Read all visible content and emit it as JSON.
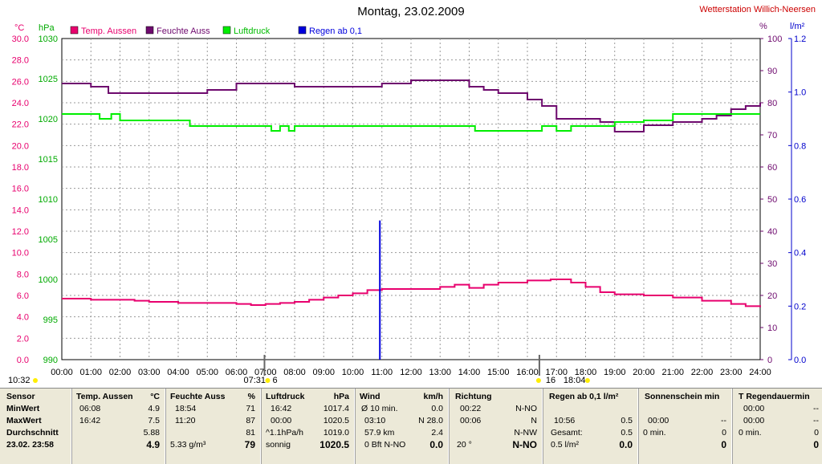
{
  "title": "Montag, 23.02.2009",
  "station": "Wetterstation Willich-Neersen",
  "colors": {
    "temp": "#e8006e",
    "humidity": "#6e0a6e",
    "pressure": "#00ee00",
    "rain": "#0000dd",
    "axis_temp": "#e8006e",
    "axis_hpa": "#00aa00",
    "axis_pct": "#6e0a6e",
    "axis_rain": "#0000cc"
  },
  "axis_units": {
    "temp": "°C",
    "pressure": "hPa",
    "humidity": "%",
    "rain": "l/m²"
  },
  "legend": [
    {
      "label": "Temp. Aussen",
      "color": "#e8006e"
    },
    {
      "label": "Feuchte Auss",
      "color": "#6e0a6e"
    },
    {
      "label": "Luftdruck",
      "color": "#00ee00"
    },
    {
      "label": "Regen ab 0,1",
      "color": "#0000dd"
    }
  ],
  "markers": {
    "sunrise": "07:31",
    "sunset": "18:04",
    "left_time": "10:32",
    "sunrise_count": "6",
    "sunset_count": "16"
  },
  "chart_data": {
    "type": "line",
    "x_ticks": [
      "00:00",
      "01:00",
      "02:00",
      "03:00",
      "04:00",
      "05:00",
      "06:00",
      "07:00",
      "08:00",
      "09:00",
      "10:00",
      "11:00",
      "12:00",
      "13:00",
      "14:00",
      "15:00",
      "16:00",
      "17:00",
      "18:00",
      "19:00",
      "20:00",
      "21:00",
      "22:00",
      "23:00",
      "24:00"
    ],
    "x_range": [
      0,
      24
    ],
    "axes": {
      "temp": {
        "label": "°C",
        "range": [
          0,
          30
        ],
        "ticks": [
          "0.0",
          "2.0",
          "4.0",
          "6.0",
          "8.0",
          "10.0",
          "12.0",
          "14.0",
          "16.0",
          "18.0",
          "20.0",
          "22.0",
          "24.0",
          "26.0",
          "28.0",
          "30.0"
        ]
      },
      "pressure": {
        "label": "hPa",
        "range": [
          990,
          1030
        ],
        "ticks": [
          "990",
          "995",
          "1000",
          "1005",
          "1010",
          "1015",
          "1020",
          "1025",
          "1030"
        ]
      },
      "humidity": {
        "label": "%",
        "range": [
          0,
          100
        ],
        "ticks": [
          "0",
          "10",
          "20",
          "30",
          "40",
          "50",
          "60",
          "70",
          "80",
          "90",
          "100"
        ]
      },
      "rain": {
        "label": "l/m²",
        "range": [
          0,
          1.2
        ],
        "ticks": [
          "0.0",
          "0.2",
          "0.4",
          "0.6",
          "0.8",
          "1.0",
          "1.2"
        ]
      }
    },
    "series": [
      {
        "name": "Temp. Aussen",
        "axis": "temp",
        "x": [
          0,
          0.8,
          1,
          2,
          2.5,
          3,
          4,
          5,
          6,
          6.5,
          7,
          7.5,
          8,
          8.5,
          9,
          9.5,
          10,
          10.5,
          11,
          12,
          13,
          13.5,
          14,
          14.5,
          15,
          16,
          16.8,
          17.5,
          18,
          18.5,
          19,
          20,
          21,
          22,
          23,
          23.5,
          24
        ],
        "y": [
          5.7,
          5.7,
          5.6,
          5.6,
          5.5,
          5.4,
          5.3,
          5.3,
          5.2,
          5.1,
          5.2,
          5.3,
          5.4,
          5.6,
          5.8,
          6.0,
          6.2,
          6.5,
          6.6,
          6.6,
          6.8,
          7.0,
          6.7,
          7.0,
          7.2,
          7.4,
          7.5,
          7.2,
          6.8,
          6.3,
          6.1,
          6.0,
          5.8,
          5.5,
          5.2,
          5.0,
          4.9
        ]
      },
      {
        "name": "Feuchte Auss",
        "axis": "humidity",
        "x": [
          0,
          1,
          1.6,
          2,
          3,
          4,
          5,
          6,
          7,
          8,
          9,
          10,
          11,
          12,
          13,
          14,
          14.5,
          15,
          16,
          16.5,
          17,
          18,
          18.5,
          19,
          20,
          21,
          22,
          22.5,
          23,
          23.5,
          24
        ],
        "y": [
          86,
          85,
          83,
          83,
          83,
          83,
          84,
          86,
          86,
          85,
          85,
          85,
          86,
          87,
          87,
          85,
          84,
          83,
          81,
          79,
          75,
          75,
          74,
          71,
          73,
          74,
          75,
          76,
          78,
          79,
          80
        ]
      },
      {
        "name": "Luftdruck",
        "axis": "pressure",
        "x": [
          0,
          1,
          1.3,
          1.7,
          2,
          3,
          4,
          4.4,
          5,
          6,
          7,
          7.2,
          7.5,
          7.8,
          8,
          9,
          10,
          11,
          12,
          13,
          14,
          14.2,
          15,
          16,
          16.5,
          17,
          17.5,
          18,
          18.5,
          19,
          20,
          21,
          22,
          23,
          24
        ],
        "y": [
          1020.6,
          1020.6,
          1020.0,
          1020.6,
          1019.8,
          1019.8,
          1019.8,
          1019.1,
          1019.1,
          1019.1,
          1019.1,
          1018.5,
          1019.1,
          1018.5,
          1019.1,
          1019.1,
          1019.1,
          1019.1,
          1019.1,
          1019.1,
          1019.1,
          1018.5,
          1018.5,
          1018.5,
          1019.1,
          1018.5,
          1019.1,
          1019.1,
          1019.1,
          1019.6,
          1019.8,
          1020.6,
          1020.6,
          1020.6,
          1020.6
        ]
      },
      {
        "name": "Regen ab 0,1",
        "axis": "rain",
        "type": "bar",
        "x": [
          10.93
        ],
        "y": [
          0.52
        ]
      }
    ]
  },
  "table": {
    "row_labels": {
      "head": "Sensor",
      "min": "MinWert",
      "max": "MaxWert",
      "avg": "Durchschnitt",
      "cur": "23.02.  23:58"
    },
    "temp": {
      "head": "Temp. Aussen",
      "unit": "°C",
      "min_t": "06:08",
      "min_v": "4.9",
      "max_t": "16:42",
      "max_v": "7.5",
      "avg": "5.88",
      "cur": "4.9"
    },
    "hum": {
      "head": "Feuchte Auss",
      "unit": "%",
      "min_t": "18:54",
      "min_v": "71",
      "max_t": "11:20",
      "max_v": "87",
      "avg": "81",
      "cur_a": "5.33 g/m³",
      "cur": "79"
    },
    "press": {
      "head": "Luftdruck",
      "unit": "hPa",
      "min_t": "16:42",
      "min_v": "1017.4",
      "max_t": "00:00",
      "max_v": "1020.5",
      "avg_a": "^1.1hPa/h",
      "avg": "1019.0",
      "cur_a": "sonnig",
      "cur": "1020.5"
    },
    "wind": {
      "head": "Wind",
      "unit": "km/h",
      "r1a": "Ø 10 min.",
      "r1b": "0.0",
      "r2a": "03:10",
      "r2b": "N 28.0",
      "r3a": "57.9 km",
      "r3b": "2.4",
      "r4a": "0 Bft N-NO",
      "r4b": "0.0"
    },
    "dir": {
      "head": "Richtung",
      "r1a": "00:22",
      "r1b": "N-NO",
      "r2a": "00:06",
      "r2b": "N",
      "r3b": "N-NW",
      "r4a": "20 °",
      "r4b": "N-NO"
    },
    "rain": {
      "head": "Regen ab 0,1 l/m²",
      "r2a": "10:56",
      "r2b": "0.5",
      "r3a": "Gesamt:",
      "r3b": "0.5",
      "r4a": "0.5 l/m²",
      "r4b": "0.0"
    },
    "sun": {
      "head": "Sonnenschein min",
      "r2a": "00:00",
      "r2b": "--",
      "r3a": "0 min.",
      "r3b": "0",
      "r4b": "0"
    },
    "train": {
      "head": "T Regendauermin",
      "r1a": "00:00",
      "r1b": "--",
      "r2a": "00:00",
      "r2b": "--",
      "r3a": "0 min.",
      "r3b": "0",
      "r4b": "0"
    }
  }
}
